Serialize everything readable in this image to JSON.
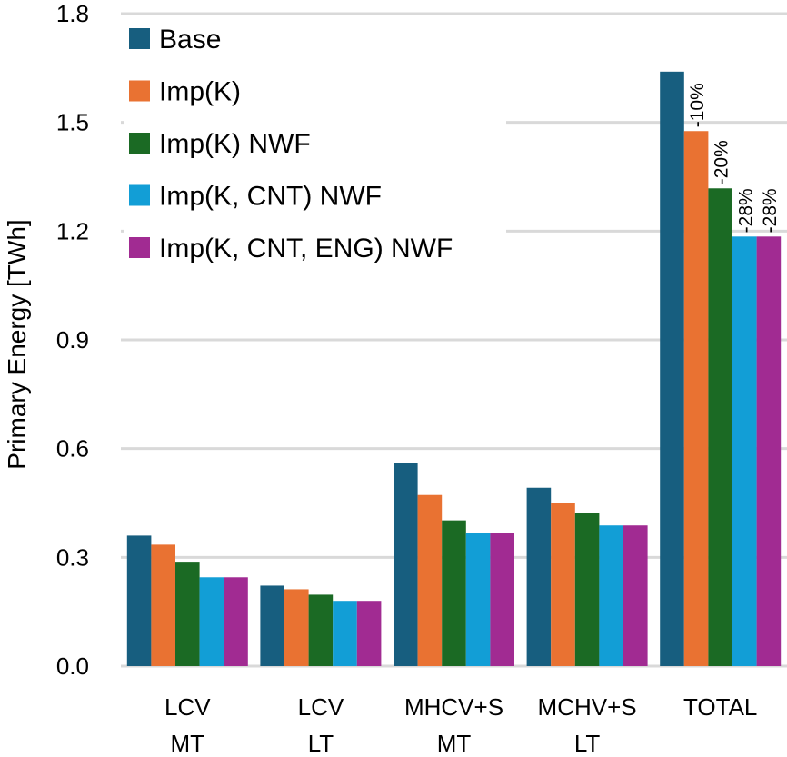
{
  "chart_data": {
    "type": "bar",
    "title": "",
    "xlabel": "",
    "ylabel": "Primary Energy [TWh]",
    "ylim": [
      0,
      1.8
    ],
    "yticks": [
      0.0,
      0.3,
      0.6,
      0.9,
      1.2,
      1.5,
      1.8
    ],
    "ytick_labels": [
      "0.0",
      "0.3",
      "0.6",
      "0.9",
      "1.2",
      "1.5",
      "1.8"
    ],
    "grid": true,
    "legend_position": "top-left",
    "categories": [
      [
        "LCV",
        "MT"
      ],
      [
        "LCV",
        "LT"
      ],
      [
        "MHCV+S",
        "MT"
      ],
      [
        "MCHV+S",
        "LT"
      ],
      [
        "TOTAL"
      ]
    ],
    "series": [
      {
        "name": "Base",
        "color": "#175e7f",
        "values": [
          0.36,
          0.222,
          0.56,
          0.492,
          1.64
        ]
      },
      {
        "name": "Imp(K)",
        "color": "#e97232",
        "values": [
          0.335,
          0.212,
          0.472,
          0.45,
          1.476
        ]
      },
      {
        "name": "Imp(K) NWF",
        "color": "#1b6a24",
        "values": [
          0.288,
          0.197,
          0.402,
          0.422,
          1.318
        ]
      },
      {
        "name": "Imp(K, CNT) NWF",
        "color": "#129ed6",
        "values": [
          0.245,
          0.18,
          0.368,
          0.388,
          1.185
        ]
      },
      {
        "name": "Imp(K, CNT, ENG) NWF",
        "color": "#a12b92",
        "values": [
          0.245,
          0.18,
          0.368,
          0.388,
          1.185
        ]
      }
    ],
    "annotations": [
      {
        "category": "TOTAL",
        "series": "Imp(K)",
        "text": "-10%"
      },
      {
        "category": "TOTAL",
        "series": "Imp(K) NWF",
        "text": "-20%"
      },
      {
        "category": "TOTAL",
        "series": "Imp(K, CNT) NWF",
        "text": "-28%"
      },
      {
        "category": "TOTAL",
        "series": "Imp(K, CNT, ENG) NWF",
        "text": "-28%"
      }
    ]
  }
}
